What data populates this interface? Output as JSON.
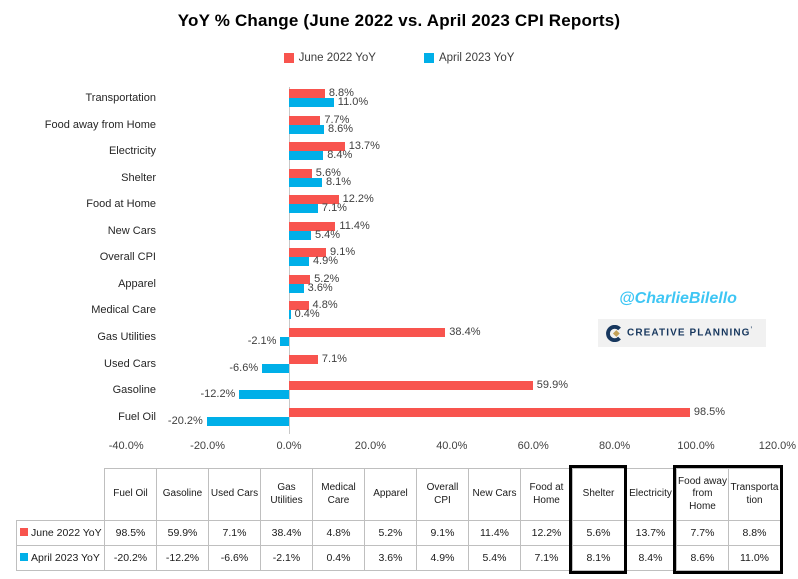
{
  "title": "YoY % Change (June 2022 vs. April 2023 CPI Reports)",
  "legend": [
    {
      "label": "June 2022 YoY",
      "color": "#f8544e"
    },
    {
      "label": "April 2023 YoY",
      "color": "#00afe8"
    }
  ],
  "annotations": {
    "twitter_handle": "@CharlieBilello",
    "handle_color": "#3ec6f4",
    "logo_text": "CREATIVE PLANNING",
    "logo_trademark": "’",
    "logo_color": "#17375e",
    "logo_accent_color": "#c3a158",
    "logo_background": "#f1f1f1"
  },
  "chart_data": {
    "type": "bar",
    "orientation": "horizontal",
    "title": "YoY % Change (June 2022 vs. April 2023 CPI Reports)",
    "categories": [
      "Fuel Oil",
      "Gasoline",
      "Used Cars",
      "Gas Utilities",
      "Medical Care",
      "Apparel",
      "Overall CPI",
      "New Cars",
      "Food at Home",
      "Shelter",
      "Electricity",
      "Food away from Home",
      "Transportation"
    ],
    "series": [
      {
        "name": "June 2022 YoY",
        "color": "#f8544e",
        "values": [
          98.5,
          59.9,
          7.1,
          38.4,
          4.8,
          5.2,
          9.1,
          11.4,
          12.2,
          5.6,
          13.7,
          7.7,
          8.8
        ]
      },
      {
        "name": "April 2023 YoY",
        "color": "#00afe8",
        "values": [
          -20.2,
          -12.2,
          -6.6,
          -2.1,
          0.4,
          3.6,
          4.9,
          5.4,
          7.1,
          8.1,
          8.4,
          8.6,
          11.0
        ]
      }
    ],
    "bar_order_top_to_bottom": [
      "Transportation",
      "Food away from Home",
      "Electricity",
      "Shelter",
      "Food at Home",
      "New Cars",
      "Overall CPI",
      "Apparel",
      "Medical Care",
      "Gas Utilities",
      "Used Cars",
      "Gasoline",
      "Fuel Oil"
    ],
    "xlim": [
      -40,
      120
    ],
    "x_tick_step": 20,
    "x_tick_labels": [
      "-40.0%",
      "-20.0%",
      "0.0%",
      "20.0%",
      "40.0%",
      "60.0%",
      "80.0%",
      "100.0%",
      "120.0%"
    ],
    "grid": false,
    "legend_position": "top",
    "value_labels": true,
    "value_label_format": "0.0%"
  },
  "table": {
    "rows": [
      {
        "label": "June 2022 YoY",
        "swatch_color": "#f8544e"
      },
      {
        "label": "April 2023 YoY",
        "swatch_color": "#00afe8"
      }
    ],
    "highlights": {
      "single_column": "Shelter",
      "group_columns": [
        "Food away from Home",
        "Transportation"
      ]
    }
  }
}
